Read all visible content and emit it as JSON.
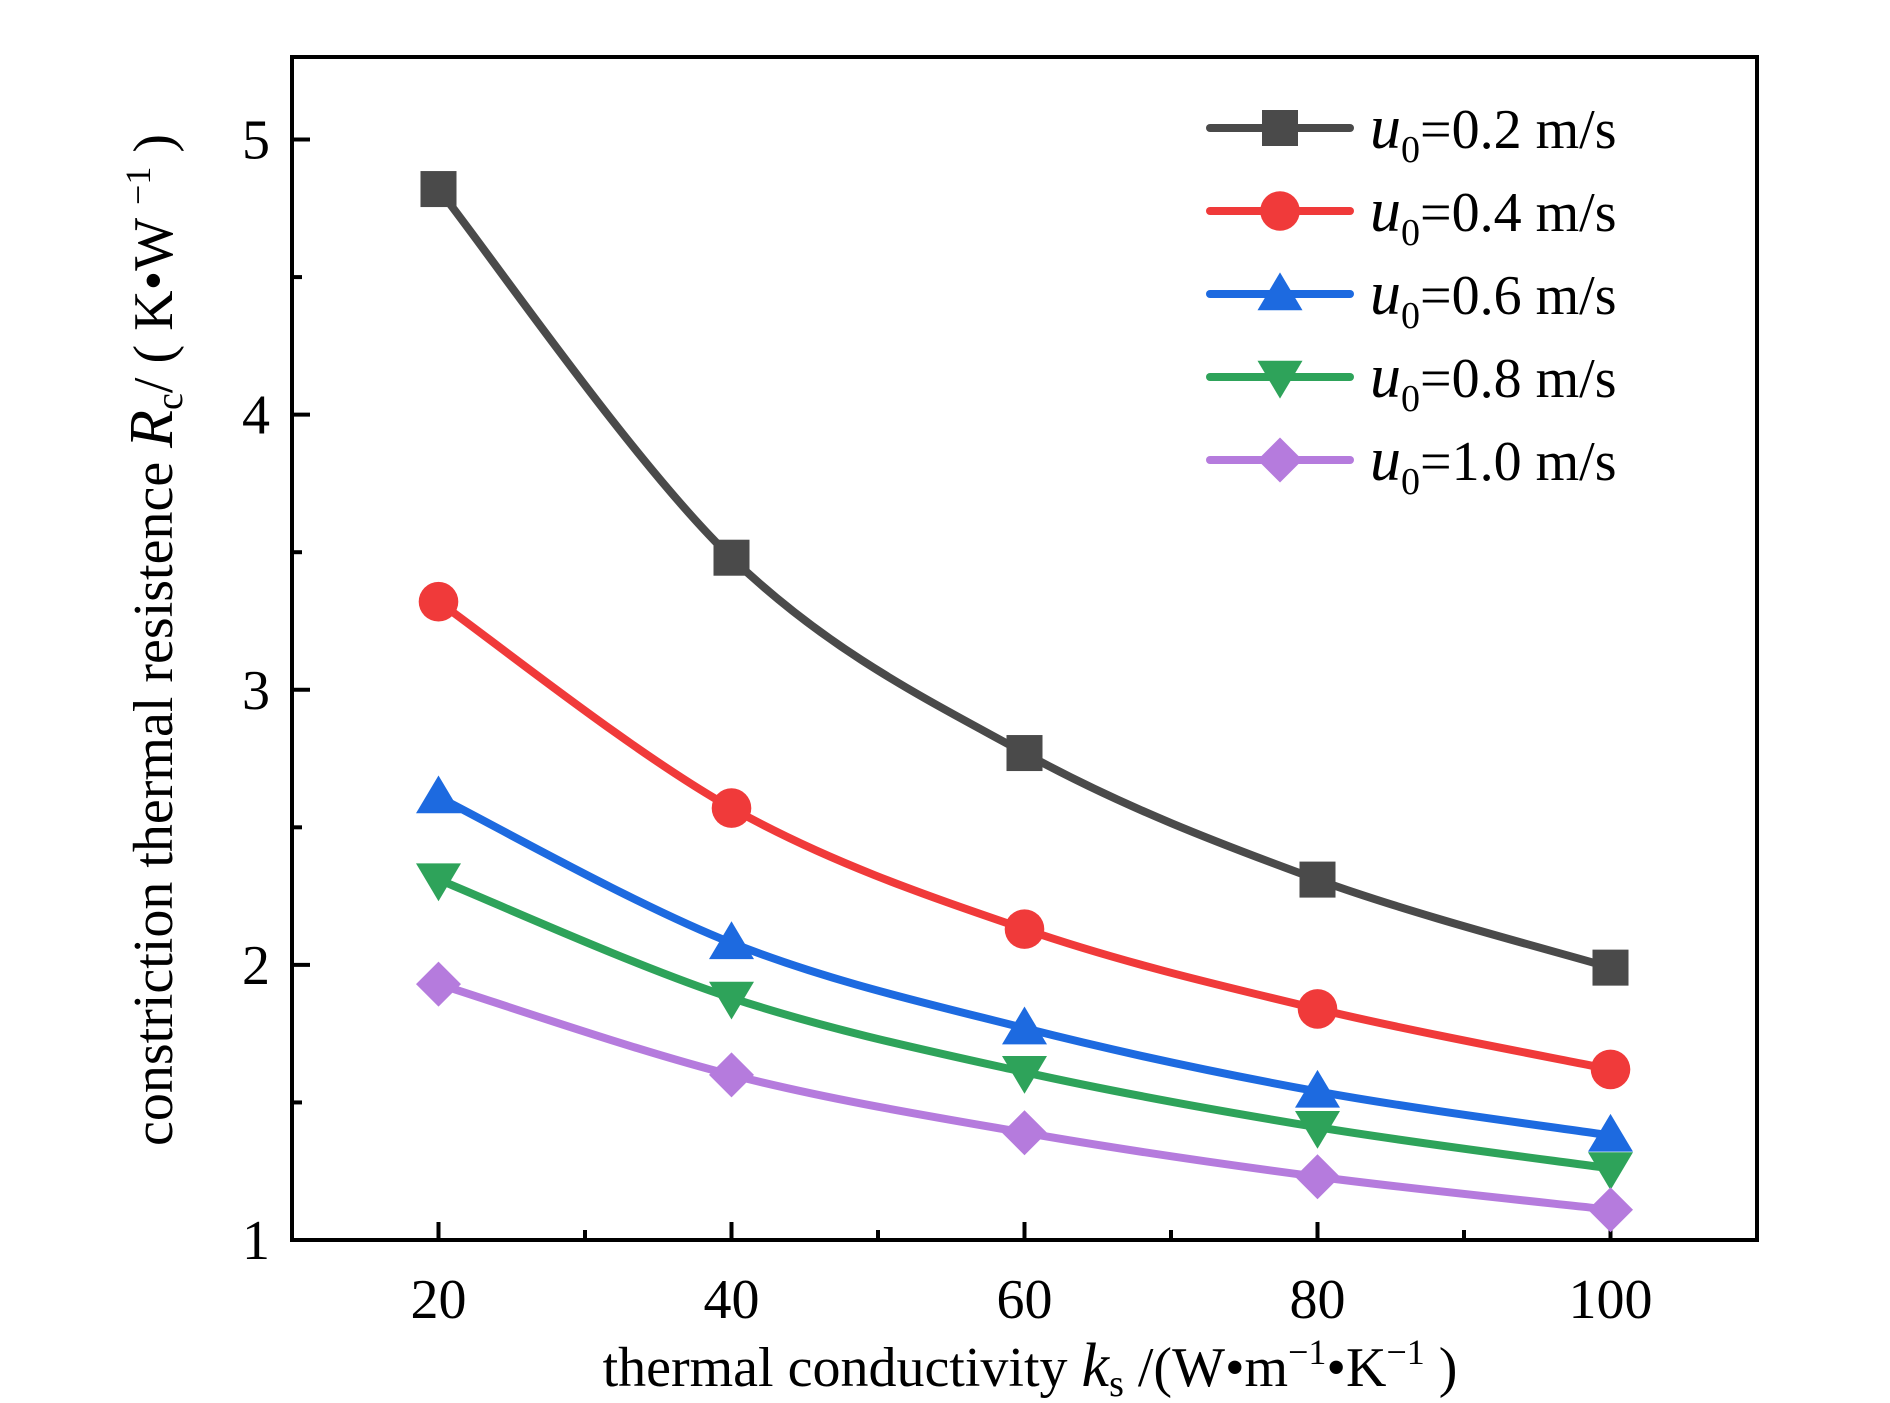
{
  "chart_data": {
    "type": "line",
    "xlabel": "thermal conductivity k_s /(W·m^-1·K^-1)",
    "ylabel": "constriction thermal resistence R_c/ ( K·W^-1 )",
    "xlim": [
      10,
      110
    ],
    "ylim": [
      1,
      5.3
    ],
    "xticks": [
      20,
      40,
      60,
      80,
      100
    ],
    "xtick_labels": [
      "20",
      "40",
      "60",
      "80",
      "100"
    ],
    "yticks": [
      1,
      2,
      3,
      4,
      5
    ],
    "ytick_labels": [
      "1",
      "2",
      "3",
      "4",
      "5"
    ],
    "x_minor_ticks": [
      30,
      50,
      70,
      90
    ],
    "y_minor_ticks": [
      1.5,
      2.5,
      3.5,
      4.5
    ],
    "grid": false,
    "legend_position": "top-right",
    "x": [
      20,
      40,
      60,
      80,
      100
    ],
    "series": [
      {
        "name": "u0=0.2 m/s",
        "var": "u",
        "sub": "0",
        "value_text": "=0.2 m/s",
        "color": "#4a4a4a",
        "marker": "square",
        "values": [
          4.82,
          3.48,
          2.77,
          2.31,
          1.99
        ]
      },
      {
        "name": "u0=0.4 m/s",
        "var": "u",
        "sub": "0",
        "value_text": "=0.4 m/s",
        "color": "#f03a3a",
        "marker": "circle",
        "values": [
          3.32,
          2.57,
          2.13,
          1.84,
          1.62
        ]
      },
      {
        "name": "u0=0.6 m/s",
        "var": "u",
        "sub": "0",
        "value_text": "=0.6 m/s",
        "color": "#1d6ae0",
        "marker": "triangle-up",
        "values": [
          2.61,
          2.08,
          1.77,
          1.54,
          1.38
        ]
      },
      {
        "name": "u0=0.8 m/s",
        "var": "u",
        "sub": "0",
        "value_text": "=0.8 m/s",
        "color": "#2ea35a",
        "marker": "triangle-down",
        "values": [
          2.31,
          1.88,
          1.61,
          1.41,
          1.26
        ]
      },
      {
        "name": "u0=1.0 m/s",
        "var": "u",
        "sub": "0",
        "value_text": "=1.0 m/s",
        "color": "#b57bdd",
        "marker": "diamond",
        "values": [
          1.93,
          1.6,
          1.39,
          1.23,
          1.11
        ]
      }
    ]
  },
  "labels": {
    "x_title_main": "thermal conductivity ",
    "x_title_var": "k",
    "x_title_sub": "s",
    "x_title_units_a": " /(W•m",
    "x_title_exp1": "−1",
    "x_title_units_b": "•K",
    "x_title_exp2": "−1",
    "x_title_units_c": " )",
    "y_title_main": "constriction thermal resistence ",
    "y_title_var": "R",
    "y_title_sub": "c",
    "y_title_units_a": "/ ( K•W ",
    "y_title_exp": "−1",
    "y_title_units_b": " )"
  }
}
